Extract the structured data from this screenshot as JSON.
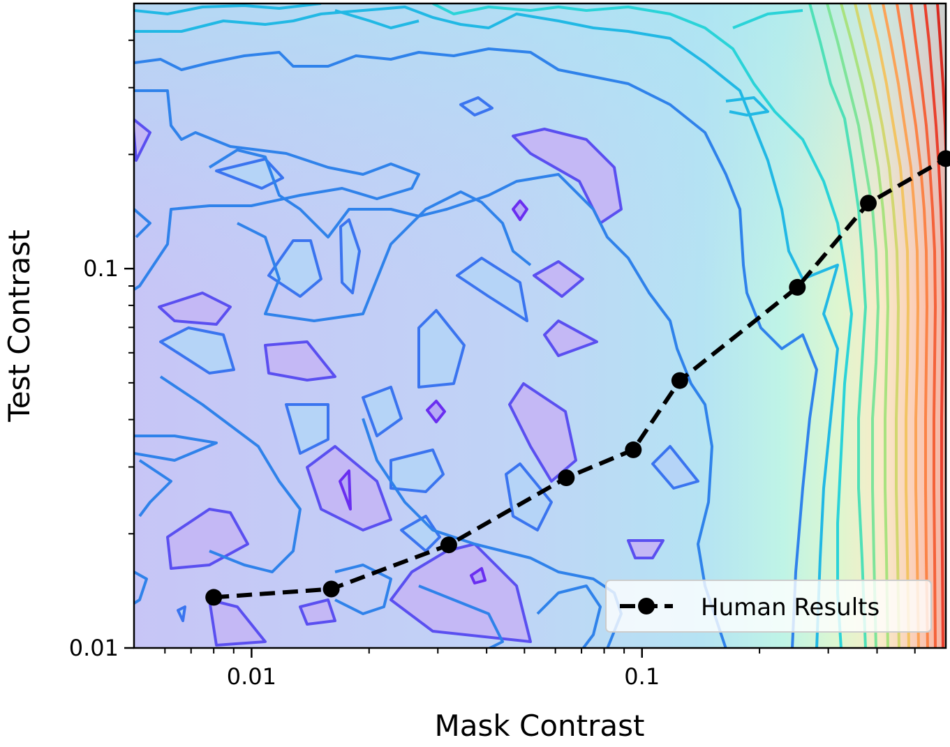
{
  "chart_data": {
    "type": "line",
    "xlabel": "Mask Contrast",
    "ylabel": "Test Contrast",
    "xscale": "log",
    "yscale": "log",
    "xlim": [
      0.005,
      0.6
    ],
    "ylim": [
      0.01,
      0.5
    ],
    "x_ticks": [
      {
        "value": 0.01,
        "label": "0.01"
      },
      {
        "value": 0.1,
        "label": "0.1"
      }
    ],
    "y_ticks": [
      {
        "value": 0.01,
        "label": "0.01"
      },
      {
        "value": 0.1,
        "label": "0.1"
      }
    ],
    "background": "filled contour map with rainbow colormap (purple/blue low on the left, green-yellow-red high at the right edge)",
    "legend": {
      "placement": "lower right"
    },
    "series": [
      {
        "name": "Human Results",
        "style": "dashed",
        "marker": "circle",
        "color": "#000000",
        "x": [
          0.008,
          0.016,
          0.032,
          0.064,
          0.095,
          0.125,
          0.25,
          0.38,
          0.6
        ],
        "y": [
          0.0136,
          0.0143,
          0.0187,
          0.0281,
          0.0333,
          0.0507,
          0.0893,
          0.1488,
          0.195
        ]
      }
    ]
  }
}
